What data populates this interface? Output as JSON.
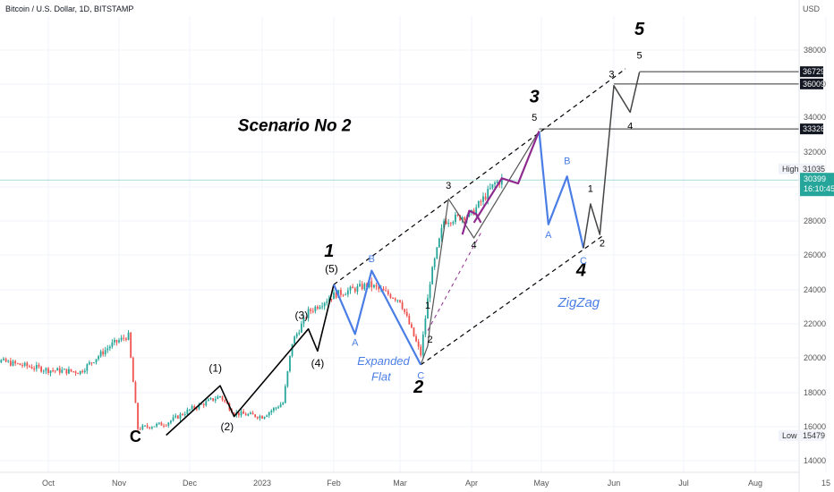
{
  "header": {
    "title": "Bitcoin / U.S. Dollar, 1D, BITSTAMP",
    "currency": "USD"
  },
  "colors": {
    "up_candle": "#26a69a",
    "down_candle": "#ef5350",
    "black_wave": "#000000",
    "blue_wave": "#4a7ee6",
    "purple_wave": "#8e2a8e",
    "current_price_line": "#26a69a",
    "price_tag_bg": "#131722"
  },
  "chart_data": {
    "type": "candlestick",
    "symbol": "Bitcoin / U.S. Dollar",
    "timeframe": "1D",
    "exchange": "BITSTAMP",
    "ylim": [
      13800,
      40200
    ],
    "x_ticks": [
      "Oct",
      "Nov",
      "Dec",
      "2023",
      "Feb",
      "Mar",
      "Apr",
      "May",
      "Jun",
      "Jul",
      "Aug",
      "15"
    ],
    "y_ticks": [
      14000,
      16000,
      18000,
      20000,
      22000,
      24000,
      26000,
      28000,
      30000,
      32000,
      34000,
      36000,
      38000
    ],
    "price_tags": [
      {
        "label": "36729",
        "value": 36729,
        "style": "dark"
      },
      {
        "label": "36009",
        "value": 36009,
        "style": "dark"
      },
      {
        "label": "33326",
        "value": 33326,
        "style": "dark"
      },
      {
        "label": "31035",
        "value": 31035,
        "style": "plain",
        "prefix": "High"
      },
      {
        "label": "30399",
        "value": 30399,
        "style": "green",
        "sublabel": "16:10:45"
      },
      {
        "label": "15479",
        "value": 15479,
        "style": "plain",
        "prefix": "Low"
      }
    ],
    "candles_daily_closes_approx": [
      {
        "date": "2022-09-01",
        "close": 20100
      },
      {
        "date": "2022-09-15",
        "close": 19700
      },
      {
        "date": "2022-10-01",
        "close": 19300
      },
      {
        "date": "2022-10-15",
        "close": 19200
      },
      {
        "date": "2022-10-29",
        "close": 20800
      },
      {
        "date": "2022-11-05",
        "close": 21300
      },
      {
        "date": "2022-11-09",
        "close": 15900
      },
      {
        "date": "2022-11-21",
        "close": 16200
      },
      {
        "date": "2022-12-01",
        "close": 17000
      },
      {
        "date": "2022-12-14",
        "close": 17800
      },
      {
        "date": "2022-12-20",
        "close": 16800
      },
      {
        "date": "2023-01-01",
        "close": 16600
      },
      {
        "date": "2023-01-10",
        "close": 17400
      },
      {
        "date": "2023-01-14",
        "close": 20900
      },
      {
        "date": "2023-01-21",
        "close": 22700
      },
      {
        "date": "2023-02-01",
        "close": 23700
      },
      {
        "date": "2023-02-16",
        "close": 24300
      },
      {
        "date": "2023-03-01",
        "close": 23400
      },
      {
        "date": "2023-03-10",
        "close": 20200
      },
      {
        "date": "2023-03-14",
        "close": 24500
      },
      {
        "date": "2023-03-20",
        "close": 28000
      },
      {
        "date": "2023-04-01",
        "close": 28400
      },
      {
        "date": "2023-04-11",
        "close": 30200
      },
      {
        "date": "2023-04-14",
        "close": 30400
      }
    ],
    "annotations": {
      "scenario": "Scenario No 2",
      "black_wave_path": [
        {
          "date": "2022-11-21",
          "value": 15500
        },
        {
          "date": "2022-12-14",
          "value": 18400,
          "label": "(1)"
        },
        {
          "date": "2022-12-20",
          "value": 16600,
          "label": "(2)"
        },
        {
          "date": "2023-01-21",
          "value": 21700,
          "label": "(3)"
        },
        {
          "date": "2023-01-25",
          "value": 20400,
          "label": "(4)"
        },
        {
          "date": "2023-02-01",
          "value": 24300,
          "label": "(5)"
        },
        {
          "date": "2023-03-14",
          "value": 21900,
          "label": "1"
        },
        {
          "date": "2023-03-13",
          "value": 20700,
          "label": "2"
        },
        {
          "date": "2023-03-22",
          "value": 29300,
          "label": "3"
        },
        {
          "date": "2023-04-02",
          "value": 27000,
          "label": "4"
        }
      ],
      "blue_wave_flat": [
        {
          "date": "2023-02-01",
          "value": 24300
        },
        {
          "date": "2023-02-10",
          "value": 21400,
          "label": "A"
        },
        {
          "date": "2023-02-17",
          "value": 25100,
          "label": "B"
        },
        {
          "date": "2023-03-10",
          "value": 19600,
          "label": "C"
        }
      ],
      "blue_wave_zigzag": [
        {
          "date": "2023-04-30",
          "value": 33200
        },
        {
          "date": "2023-05-04",
          "value": 27800,
          "label": "A"
        },
        {
          "date": "2023-05-12",
          "value": 30600,
          "label": "B"
        },
        {
          "date": "2023-05-19",
          "value": 26400,
          "label": "C"
        }
      ],
      "black_projection": [
        {
          "date": "2023-05-19",
          "value": 26400
        },
        {
          "date": "2023-05-22",
          "value": 29000,
          "label": "1"
        },
        {
          "date": "2023-05-26",
          "value": 27200,
          "label": "2"
        },
        {
          "date": "2023-06-01",
          "value": 35900,
          "label": "3"
        },
        {
          "date": "2023-06-08",
          "value": 34300,
          "label": "4"
        },
        {
          "date": "2023-06-12",
          "value": 36700,
          "label": "5"
        }
      ],
      "purple_path": [
        {
          "date": "2023-04-02",
          "value": 27900
        },
        {
          "date": "2023-04-14",
          "value": 30500
        },
        {
          "date": "2023-04-21",
          "value": 30200
        },
        {
          "date": "2023-04-30",
          "value": 33200
        }
      ],
      "major_wave_labels": [
        "1",
        "2",
        "3",
        "4",
        "5"
      ],
      "pattern_labels": [
        "Expanded",
        "Flat",
        "ZigZag"
      ],
      "secondary_labels": [
        "(1)",
        "(2)",
        "(3)",
        "(4)",
        "(5)",
        "A",
        "B",
        "C",
        "1",
        "2",
        "3",
        "4",
        "5"
      ]
    }
  }
}
